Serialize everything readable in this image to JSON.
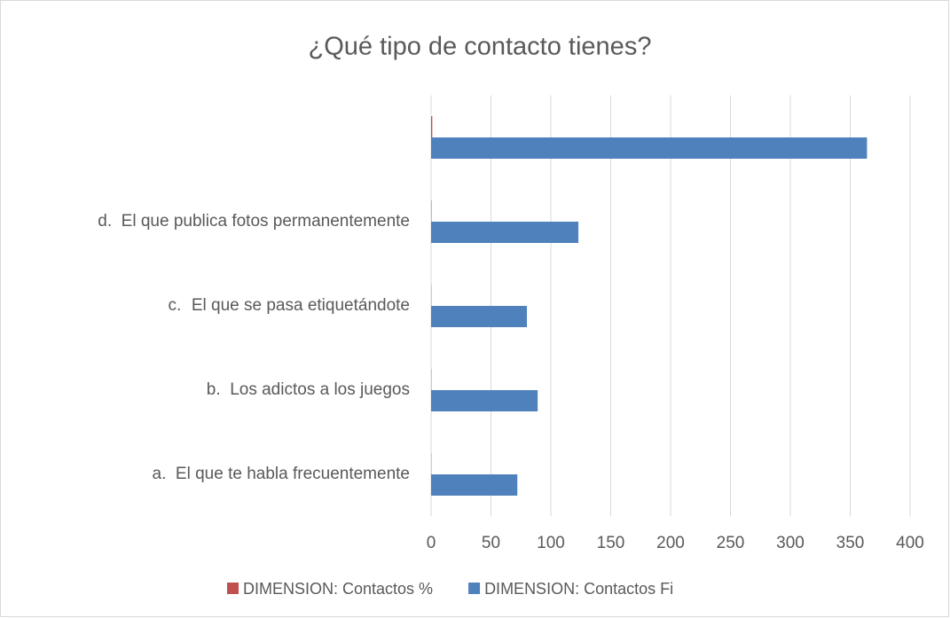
{
  "chart_data": {
    "type": "hbar",
    "title": "¿Qué tipo de contacto tienes?",
    "categories": [
      "a.\tEl que te habla frecuentemente",
      "b.\tLos adictos a los juegos",
      "c.\tEl que se pasa etiquetándote",
      "d.\tEl que publica fotos permanentemente",
      null
    ],
    "series": [
      {
        "name": "DIMENSION: Contactos %",
        "color": "#c0504d",
        "values": [
          0.2,
          0.24,
          0.22,
          0.34,
          1
        ]
      },
      {
        "name": "DIMENSION: Contactos Fi",
        "color": "#4f81bd",
        "values": [
          72,
          89,
          80,
          123,
          364
        ]
      }
    ],
    "xlim": [
      0,
      400
    ],
    "xticks": [
      0,
      50,
      100,
      150,
      200,
      250,
      300,
      350,
      400
    ],
    "grid": true,
    "legend": "bottom"
  }
}
